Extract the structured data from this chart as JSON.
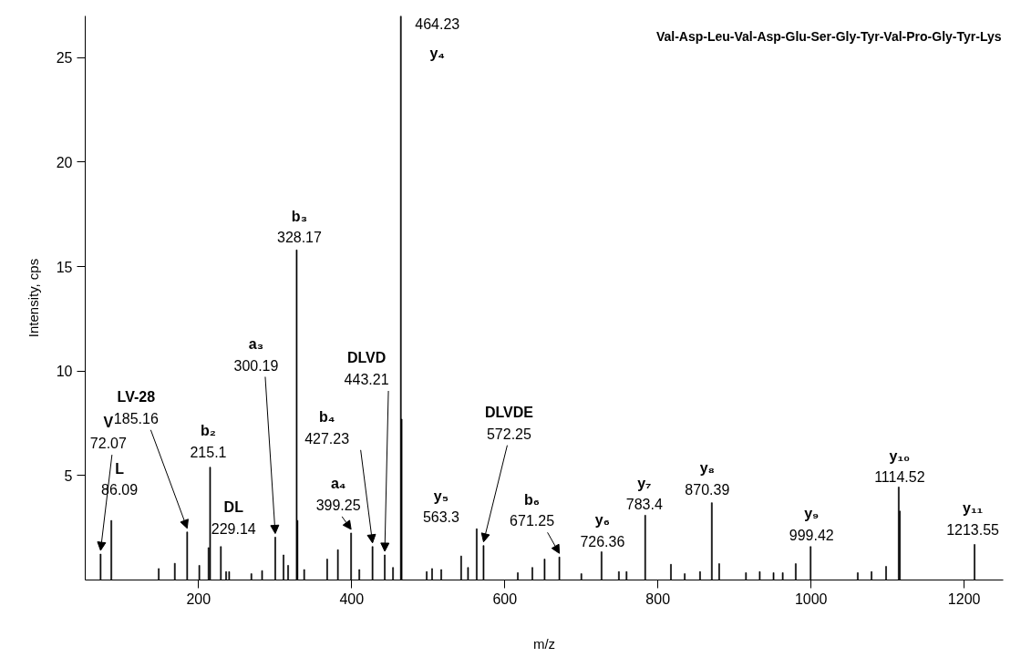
{
  "chart_data": {
    "type": "bar",
    "title": "Val-Asp-Leu-Val-Asp-Glu-Ser-Gly-Tyr-Val-Pro-Gly-Tyr-Lys",
    "xlabel": "m/z",
    "ylabel": "Intensity, cps",
    "color": "#000000",
    "x": [
      72.07,
      86.09,
      148,
      169,
      185.16,
      201,
      213.1,
      215.1,
      229.14,
      236,
      240,
      269,
      283,
      300.19,
      311,
      317,
      328.17,
      329.2,
      338,
      368,
      382,
      399.25,
      410,
      427.23,
      443.21,
      454,
      464.23,
      465.23,
      498,
      505,
      517,
      543,
      552,
      563.3,
      572.25,
      617,
      636,
      652,
      671.25,
      700,
      726.36,
      749,
      759,
      783.4,
      817,
      835,
      855,
      870.39,
      880,
      915,
      933,
      951,
      963,
      980,
      999.42,
      1061,
      1079,
      1098,
      1114.52,
      1116,
      1213.55
    ],
    "values": [
      1.24,
      2.85,
      0.55,
      0.8,
      2.3,
      0.7,
      1.55,
      5.4,
      1.6,
      0.4,
      0.4,
      0.3,
      0.45,
      2.05,
      1.2,
      0.7,
      15.8,
      2.85,
      0.5,
      1.0,
      1.45,
      2.25,
      0.5,
      1.6,
      1.2,
      0.6,
      27,
      7.7,
      0.4,
      0.55,
      0.5,
      1.15,
      0.6,
      2.45,
      1.65,
      0.35,
      0.6,
      1.0,
      1.1,
      0.3,
      1.35,
      0.4,
      0.4,
      3.1,
      0.75,
      0.3,
      0.4,
      3.7,
      0.78,
      0.35,
      0.4,
      0.35,
      0.35,
      0.78,
      1.6,
      0.35,
      0.4,
      0.65,
      4.45,
      3.3,
      1.7
    ],
    "xlim": [
      52,
      1251
    ],
    "ylim": [
      0,
      27
    ],
    "xticks": [
      200,
      400,
      600,
      800,
      1000,
      1200
    ],
    "yticks": [
      5,
      10,
      15,
      20,
      25
    ],
    "annotations": [
      {
        "text": "V\n72.07",
        "x": 72.07,
        "y": 1.24
      },
      {
        "text": "L\n86.09",
        "x": 86.09,
        "y": 2.85
      },
      {
        "text": "LV-28\n185.16",
        "x": 185.16,
        "y": 2.3
      },
      {
        "text": "b₂\n215.1",
        "x": 215.1,
        "y": 5.4
      },
      {
        "text": "DL\n229.14",
        "x": 229.14,
        "y": 1.6
      },
      {
        "text": "a₃\n300.19",
        "x": 300.19,
        "y": 2.05
      },
      {
        "text": "b₃\n328.17",
        "x": 328.17,
        "y": 15.8
      },
      {
        "text": "a₄\n399.25",
        "x": 399.25,
        "y": 2.25
      },
      {
        "text": "b₄\n427.23",
        "x": 427.23,
        "y": 1.6
      },
      {
        "text": "DLVD\n443.21",
        "x": 443.21,
        "y": 1.2
      },
      {
        "text": "464.23\ny₄",
        "x": 464.23,
        "y": 27
      },
      {
        "text": "y₅\n563.3",
        "x": 563.3,
        "y": 2.45
      },
      {
        "text": "DLVDE\n572.25",
        "x": 572.25,
        "y": 1.65
      },
      {
        "text": "b₆\n671.25",
        "x": 671.25,
        "y": 1.1
      },
      {
        "text": "y₆\n726.36",
        "x": 726.36,
        "y": 1.35
      },
      {
        "text": "y₇\n783.4",
        "x": 783.4,
        "y": 3.1
      },
      {
        "text": "y₈\n870.39",
        "x": 870.39,
        "y": 3.7
      },
      {
        "text": "y₉\n999.42",
        "x": 999.42,
        "y": 1.6
      },
      {
        "text": "y₁₀\n1114.52",
        "x": 1114.52,
        "y": 4.45
      },
      {
        "text": "y₁₁\n1213.55",
        "x": 1213.55,
        "y": 1.7
      }
    ]
  }
}
